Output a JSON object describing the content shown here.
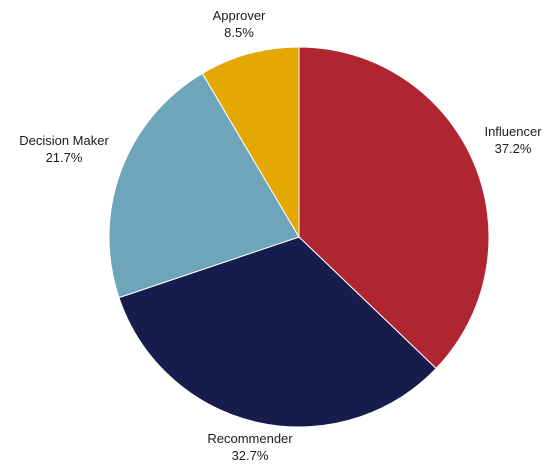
{
  "chart_data": {
    "type": "pie",
    "title": "",
    "start_angle_deg": 0,
    "direction": "clockwise",
    "slices": [
      {
        "label": "Influencer",
        "value": 37.2,
        "value_label": "37.2%",
        "color": "#b02630"
      },
      {
        "label": "Recommender",
        "value": 32.7,
        "value_label": "32.7%",
        "color": "#161d4c"
      },
      {
        "label": "Decision Maker",
        "value": 21.7,
        "value_label": "21.7%",
        "color": "#6ea5ba"
      },
      {
        "label": "Approver",
        "value": 8.5,
        "value_label": "8.5%",
        "color": "#e5a702"
      }
    ]
  }
}
